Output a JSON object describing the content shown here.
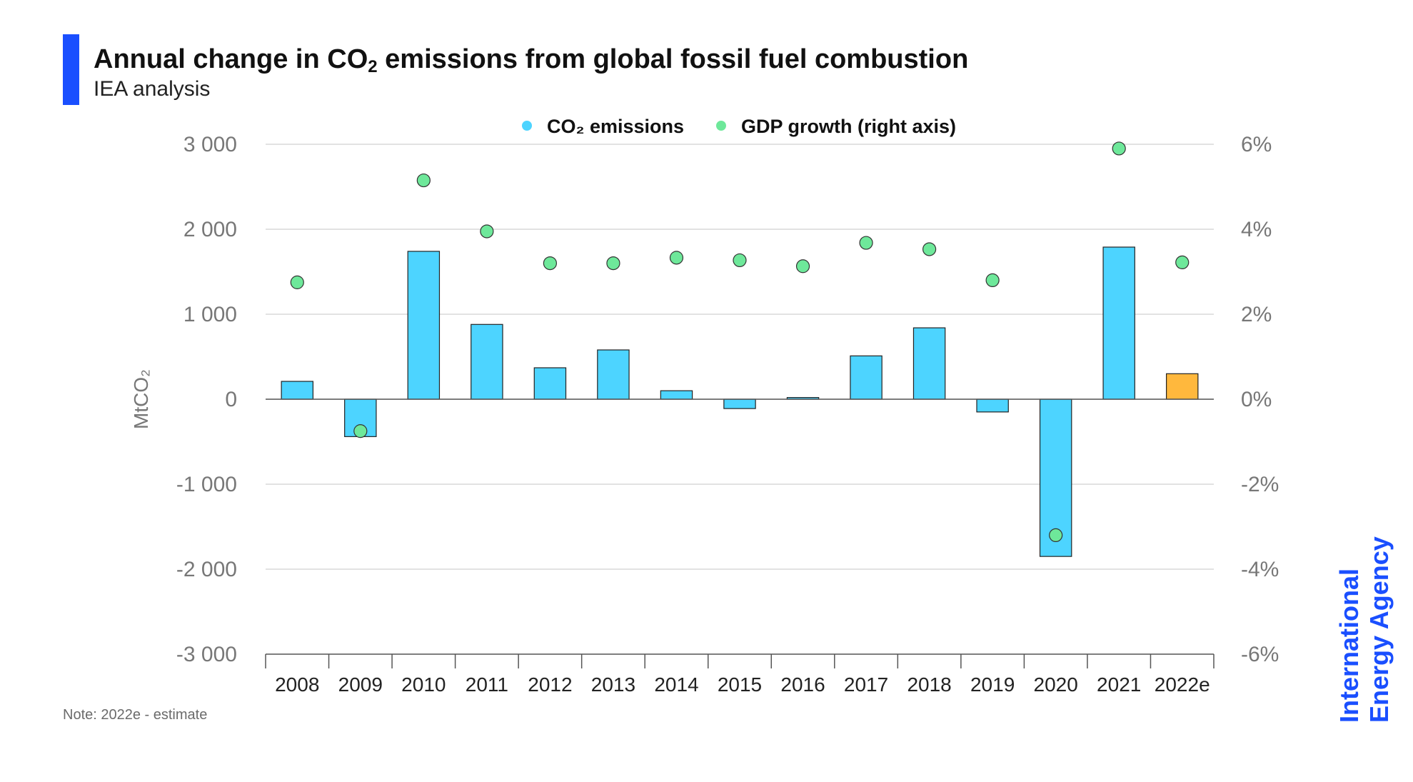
{
  "header": {
    "title_before": "Annual change in CO",
    "title_sub": "2",
    "title_after": " emissions from global fossil fuel combustion",
    "subtitle": "IEA analysis"
  },
  "note": "Note: 2022e - estimate",
  "logo": {
    "line1": "International",
    "line2": "Energy Agency",
    "color": "#1a4fff"
  },
  "colors": {
    "accent": "#1a4fff",
    "bar": "#4dd4ff",
    "bar_estimate": "#ffb83d",
    "dot": "#6ee89a",
    "grid": "#d0d0d0",
    "axis_text": "#777777",
    "tick_text": "#222222"
  },
  "chart_data": {
    "type": "bar",
    "categories": [
      "2008",
      "2009",
      "2010",
      "2011",
      "2012",
      "2013",
      "2014",
      "2015",
      "2016",
      "2017",
      "2018",
      "2019",
      "2020",
      "2021",
      "2022e"
    ],
    "series": [
      {
        "name": "CO₂ emissions",
        "axis": "left",
        "values": [
          210,
          -440,
          1740,
          880,
          370,
          580,
          100,
          -110,
          20,
          510,
          840,
          -150,
          -1850,
          1790,
          300
        ]
      },
      {
        "name": "GDP growth (right axis)",
        "axis": "right",
        "type": "scatter",
        "values": [
          2.75,
          -0.75,
          5.15,
          3.95,
          3.2,
          3.2,
          3.33,
          3.27,
          3.13,
          3.68,
          3.53,
          2.8,
          -3.2,
          5.9,
          3.22
        ]
      }
    ],
    "estimate_category": "2022e",
    "ylabel": "MtCO₂",
    "ylim": [
      -3000,
      3000
    ],
    "y_ticks": [
      "3 000",
      "2 000",
      "1 000",
      "0",
      "-1 000",
      "-2 000",
      "-3 000"
    ],
    "y2lim": [
      -6,
      6
    ],
    "y2_ticks": [
      "6%",
      "4%",
      "2%",
      "0%",
      "-2%",
      "-4%",
      "-6%"
    ],
    "grid": true,
    "legend_position": "top-center"
  }
}
